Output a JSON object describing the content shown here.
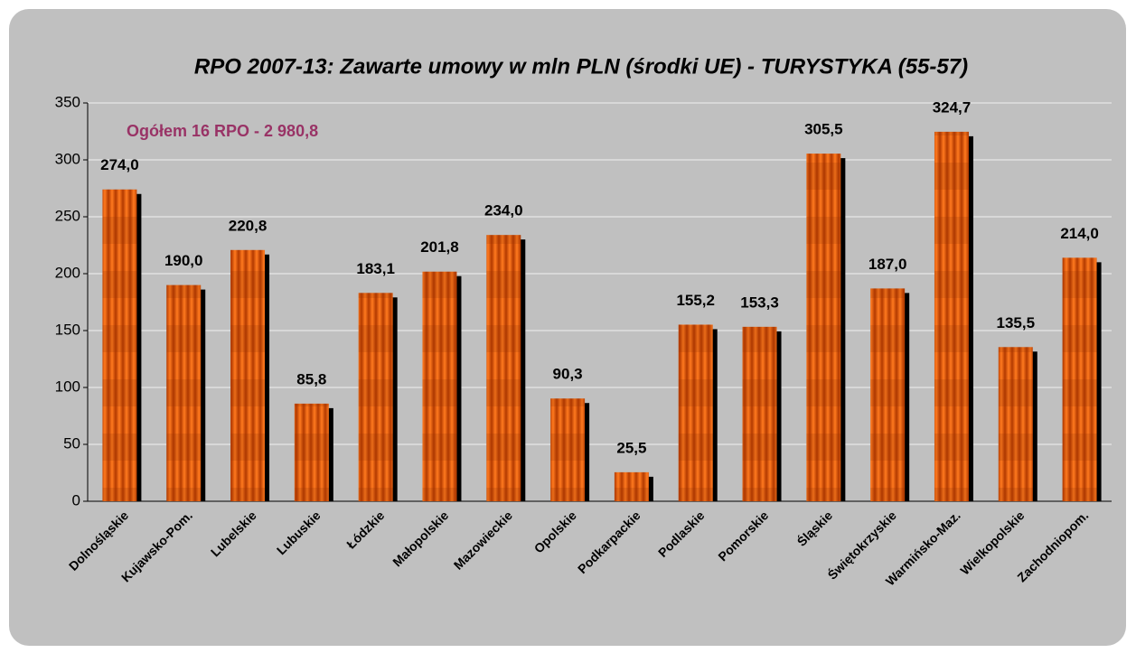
{
  "chart_data": {
    "type": "bar",
    "title": "RPO 2007-13: Zawarte umowy w mln PLN (środki UE) - TURYSTYKA (55-57)",
    "annotation": "Ogółem 16 RPO - 2 980,8",
    "categories": [
      "Dolnośląskie",
      "Kujawsko-Pom.",
      "Lubelskie",
      "Lubuskie",
      "Łódzkie",
      "Małopolskie",
      "Mazowieckie",
      "Opolskie",
      "Podkarpackie",
      "Podlaskie",
      "Pomorskie",
      "Śląskie",
      "Świętokrzyskie",
      "Warmińsko-Maz.",
      "Wielkopolskie",
      "Zachodniopom."
    ],
    "values": [
      274.0,
      190.0,
      220.8,
      85.8,
      183.1,
      201.8,
      234.0,
      90.3,
      25.5,
      155.2,
      153.3,
      305.5,
      187.0,
      324.7,
      135.5,
      214.0
    ],
    "value_labels": [
      "274,0",
      "190,0",
      "220,8",
      "85,8",
      "183,1",
      "201,8",
      "234,0",
      "90,3",
      "25,5",
      "155,2",
      "153,3",
      "305,5",
      "187,0",
      "324,7",
      "135,5",
      "214,0"
    ],
    "color": "#ff7a1f",
    "ylim": [
      0,
      350
    ],
    "yticks": [
      0,
      50,
      100,
      150,
      200,
      250,
      300,
      350
    ],
    "grid": true
  }
}
